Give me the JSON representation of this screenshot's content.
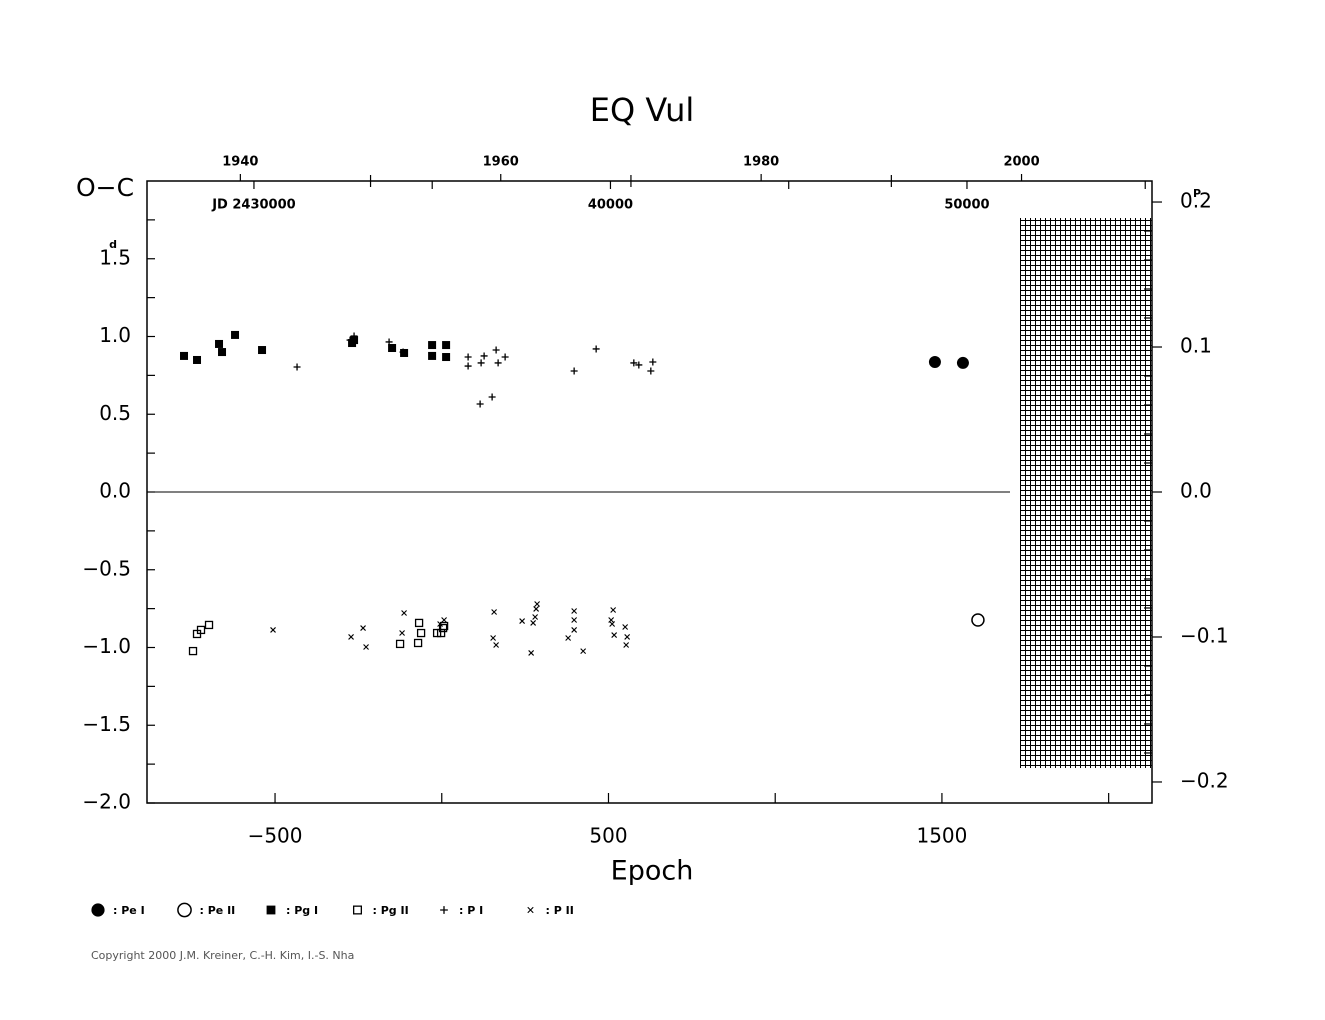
{
  "chart_data": {
    "type": "scatter",
    "title": "EQ Vul",
    "xlabel": "Epoch",
    "ylabel": "O−C",
    "y_unit": "d",
    "y2_unit": "P",
    "copyright": "Copyright 2000 J.M. Kreiner, C.-H. Kim, I.-S. Nha",
    "xlim": [
      -884,
      2130
    ],
    "xticks": [
      {
        "value": -500,
        "label": "−500"
      },
      500,
      1500
    ],
    "xticks_minor": [
      0,
      1000,
      2000
    ],
    "ylim": [
      -2,
      2
    ],
    "yticks": [
      {
        "value": -2,
        "label": "−2.0"
      },
      {
        "value": -1.5,
        "label": "−1.5"
      },
      {
        "value": -1,
        "label": "−1.0"
      },
      {
        "value": -0.5,
        "label": "−0.5"
      },
      {
        "value": 0,
        "label": "0.0"
      },
      0.5,
      {
        "value": 1,
        "label": "1.0"
      },
      1.5
    ],
    "yticks_minor": [
      -1.75,
      -1.25,
      -0.75,
      -0.25,
      0.25,
      0.75,
      1.25,
      1.75
    ],
    "y2lim": [
      -0.2145,
      0.2145
    ],
    "y2ticks": [
      {
        "value": -0.2,
        "label": "−0.2"
      },
      {
        "value": -0.1,
        "label": "−0.1"
      },
      {
        "value": 0,
        "label": "0.0"
      },
      0.1,
      0.2
    ],
    "y2ticks_minor": [
      -0.18,
      -0.16,
      -0.14,
      -0.12,
      -0.08,
      -0.06,
      -0.04,
      -0.02,
      0.02,
      0.04,
      0.06,
      0.08,
      0.12,
      0.14,
      0.16,
      0.18
    ],
    "year_lim": [
      1932.83,
      2010.02
    ],
    "year_ticks": [
      1940,
      1960,
      1980,
      2000
    ],
    "year_ticks_minor": [
      1950,
      1970,
      1990
    ],
    "jd_lim": [
      2427000,
      2455190
    ],
    "jd_ticks": [
      {
        "value": 2430000,
        "label": "JD 2430000"
      },
      {
        "value": 2440000,
        "label": "40000"
      },
      {
        "value": 2450000,
        "label": "50000"
      }
    ],
    "jd_ticks_minor": [
      2435000,
      2445000,
      2455000
    ],
    "series": [
      {
        "name": ": Pe I",
        "marker": "filled-circle",
        "color": "#000000",
        "x": [
          1479,
          1563
        ],
        "values": [
          0.836,
          0.83
        ]
      },
      {
        "name": ": Pe II",
        "marker": "open-circle",
        "color": "#000000",
        "x": [
          1608
        ],
        "values": [
          -0.823
        ]
      },
      {
        "name": ": Pg I",
        "marker": "filled-square",
        "color": "#000000",
        "x": [
          -773,
          -734,
          -668,
          -659,
          -620,
          -539,
          -269,
          -263,
          -149,
          -113,
          -29,
          -29,
          13,
          13
        ],
        "values": [
          0.875,
          0.849,
          0.952,
          0.9,
          1.01,
          0.913,
          0.958,
          0.977,
          0.926,
          0.894,
          0.945,
          0.875,
          0.945,
          0.868
        ]
      },
      {
        "name": ": Pg II",
        "marker": "open-square",
        "color": "#000000",
        "x": [
          -746,
          -734,
          -722,
          -698,
          -125,
          -71,
          -68,
          -62,
          -14,
          -2,
          4,
          7
        ],
        "values": [
          -1.023,
          -0.913,
          -0.887,
          -0.855,
          -0.977,
          -0.971,
          -0.842,
          -0.907,
          -0.907,
          -0.907,
          -0.875,
          -0.862
        ]
      },
      {
        "name": ": P I",
        "marker": "plus",
        "color": "#000000",
        "x": [
          -434,
          -275,
          -263,
          -158,
          -116,
          79,
          79,
          115,
          118,
          127,
          151,
          163,
          169,
          190,
          397,
          463,
          576,
          591,
          627,
          633
        ],
        "values": [
          0.804,
          0.977,
          1.003,
          0.965,
          0.9,
          0.868,
          0.81,
          0.566,
          0.83,
          0.875,
          0.611,
          0.913,
          0.83,
          0.868,
          0.778,
          0.92,
          0.83,
          0.817,
          0.778,
          0.836
        ]
      },
      {
        "name": ": P II",
        "marker": "cross",
        "color": "#000000",
        "x": [
          -506,
          -272,
          -236,
          -227,
          -113,
          -119,
          -5,
          7,
          157,
          154,
          163,
          241,
          268,
          274,
          280,
          283,
          286,
          379,
          397,
          397,
          397,
          424,
          514,
          508,
          511,
          517,
          550,
          556,
          553
        ],
        "values": [
          -0.887,
          -0.932,
          -0.875,
          -0.997,
          -0.778,
          -0.907,
          -0.849,
          -0.823,
          -0.772,
          -0.939,
          -0.984,
          -0.83,
          -1.035,
          -0.842,
          -0.804,
          -0.752,
          -0.72,
          -0.939,
          -0.765,
          -0.823,
          -0.887,
          -1.023,
          -0.759,
          -0.823,
          -0.849,
          -0.92,
          -0.868,
          -0.932,
          -0.984
        ]
      }
    ]
  }
}
